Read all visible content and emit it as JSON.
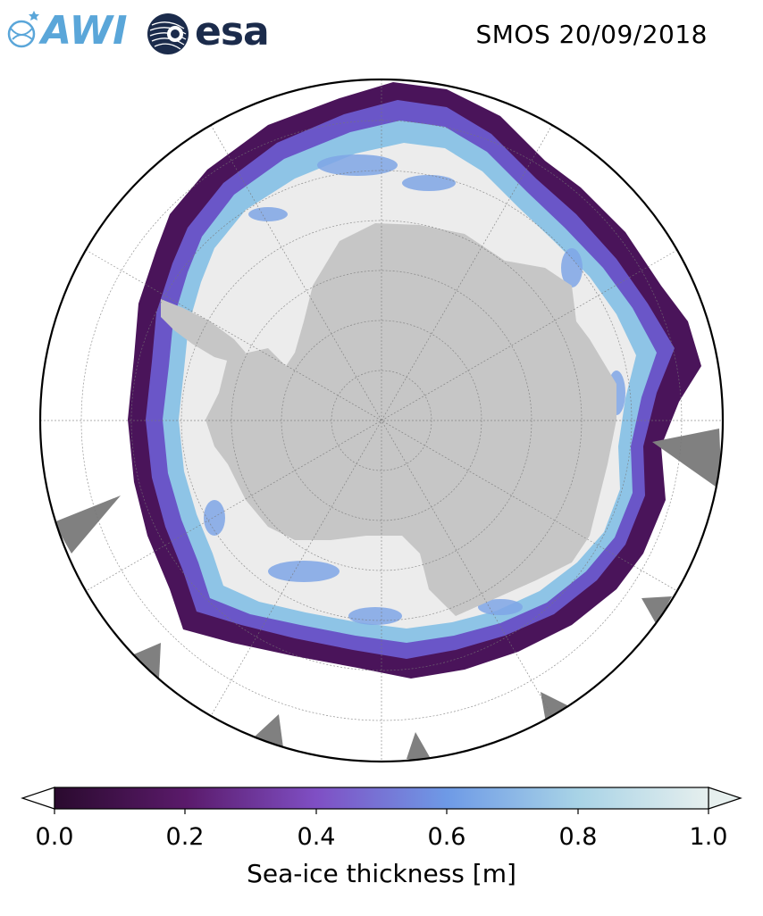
{
  "header": {
    "title": "SMOS 20/09/2018",
    "logos": [
      {
        "name": "AWI",
        "text": "AWI",
        "icon": "awi-globe-icon",
        "color": "#5aa6d9"
      },
      {
        "name": "ESA",
        "text": "esa",
        "icon": "esa-globe-icon",
        "color": "#1b2b4b"
      }
    ]
  },
  "map": {
    "projection": "south-polar-stereographic",
    "land_color": "#c8c8c8",
    "thick_ice_color": "#ececec",
    "open_ocean_color": "#ffffff",
    "missing_data_color": "#808080",
    "gridlines": true
  },
  "colorbar": {
    "label": "Sea-ice thickness [m]",
    "min": 0.0,
    "max": 1.0,
    "ticks": [
      "0.0",
      "0.2",
      "0.4",
      "0.6",
      "0.8",
      "1.0"
    ],
    "extend": "both",
    "colors": [
      "#2a0a2e",
      "#5a1a6a",
      "#7f4fc4",
      "#6e9ae6",
      "#a8d3e6",
      "#e6efee"
    ]
  }
}
